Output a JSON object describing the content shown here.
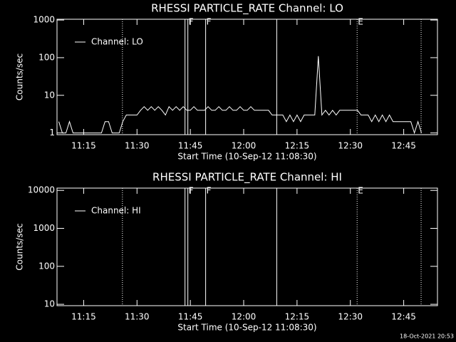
{
  "chart_data": [
    {
      "type": "line",
      "title": "RHESSI  PARTICLE_RATE  Channel: LO",
      "xlabel": "Start Time (10-Sep-12 11:08:30)",
      "ylabel": "Counts/sec",
      "xlim": [
        "11:07:30",
        "12:54:30"
      ],
      "xticks": [
        "11:15",
        "11:30",
        "11:45",
        "12:00",
        "12:15",
        "12:30",
        "12:45"
      ],
      "ylim": [
        0.9,
        1050
      ],
      "yticks": [
        1,
        10,
        100,
        1000
      ],
      "log_y": true,
      "markers": [
        {
          "x": "11:25:54",
          "style": "dotted"
        },
        {
          "x": "11:43:30",
          "style": "solid"
        },
        {
          "x": "11:44:18",
          "style": "solid",
          "label": "F"
        },
        {
          "x": "11:49:18",
          "style": "solid",
          "label": "F"
        },
        {
          "x": "12:09:18",
          "style": "solid"
        },
        {
          "x": "12:31:54",
          "style": "dotted",
          "label": "E"
        },
        {
          "x": "12:49:54",
          "style": "dotted"
        }
      ],
      "series": [
        {
          "name": "Channel: LO",
          "color": "#ffffff",
          "x": [
            "11:08",
            "11:09",
            "11:10",
            "11:11",
            "11:12",
            "11:13",
            "11:14",
            "11:15",
            "11:16",
            "11:17",
            "11:18",
            "11:19",
            "11:20",
            "11:21",
            "11:22",
            "11:23",
            "11:24",
            "11:25",
            "11:26",
            "11:27",
            "11:28",
            "11:29",
            "11:30",
            "11:31",
            "11:32",
            "11:33",
            "11:34",
            "11:35",
            "11:36",
            "11:37",
            "11:38",
            "11:39",
            "11:40",
            "11:41",
            "11:42",
            "11:43",
            "11:44",
            "11:45",
            "11:46",
            "11:47",
            "11:48",
            "11:49",
            "11:50",
            "11:51",
            "11:52",
            "11:53",
            "11:54",
            "11:55",
            "11:56",
            "11:57",
            "11:58",
            "11:59",
            "12:00",
            "12:01",
            "12:02",
            "12:03",
            "12:04",
            "12:05",
            "12:06",
            "12:07",
            "12:08",
            "12:09",
            "12:10",
            "12:11",
            "12:12",
            "12:13",
            "12:14",
            "12:15",
            "12:16",
            "12:17",
            "12:18",
            "12:19",
            "12:20",
            "12:21",
            "12:22",
            "12:23",
            "12:24",
            "12:25",
            "12:26",
            "12:27",
            "12:28",
            "12:29",
            "12:30",
            "12:31",
            "12:32",
            "12:33",
            "12:34",
            "12:35",
            "12:36",
            "12:37",
            "12:38",
            "12:39",
            "12:40",
            "12:41",
            "12:42",
            "12:43",
            "12:44",
            "12:45",
            "12:46",
            "12:47",
            "12:48",
            "12:49",
            "12:50"
          ],
          "values": [
            2,
            1,
            1,
            2,
            1,
            1,
            1,
            1,
            1,
            1,
            1,
            1,
            1,
            2,
            2,
            1,
            1,
            1,
            2,
            3,
            3,
            3,
            3,
            4,
            5,
            4,
            5,
            4,
            5,
            4,
            3,
            5,
            4,
            5,
            4,
            5,
            4,
            4,
            5,
            4,
            4,
            4,
            5,
            4,
            4,
            5,
            4,
            4,
            5,
            4,
            4,
            5,
            4,
            4,
            5,
            4,
            4,
            4,
            4,
            4,
            3,
            3,
            3,
            3,
            2,
            3,
            2,
            3,
            2,
            3,
            3,
            3,
            3,
            110,
            3,
            4,
            3,
            4,
            3,
            4,
            4,
            4,
            4,
            4,
            4,
            3,
            3,
            3,
            2,
            3,
            2,
            3,
            2,
            3,
            2,
            2,
            2,
            2,
            2,
            2,
            1,
            2,
            1
          ]
        }
      ]
    },
    {
      "type": "line",
      "title": "RHESSI  PARTICLE_RATE  Channel: HI",
      "xlabel": "Start Time (10-Sep-12 11:08:30)",
      "ylabel": "Counts/sec",
      "xlim": [
        "11:07:30",
        "12:54:30"
      ],
      "xticks": [
        "11:15",
        "11:30",
        "11:45",
        "12:00",
        "12:15",
        "12:30",
        "12:45"
      ],
      "ylim": [
        9.2,
        11500
      ],
      "yticks": [
        10,
        100,
        1000,
        10000
      ],
      "log_y": true,
      "markers": [
        {
          "x": "11:25:54",
          "style": "dotted"
        },
        {
          "x": "11:43:30",
          "style": "solid"
        },
        {
          "x": "11:44:18",
          "style": "solid",
          "label": "F"
        },
        {
          "x": "11:49:18",
          "style": "solid",
          "label": "F"
        },
        {
          "x": "12:09:18",
          "style": "solid"
        },
        {
          "x": "12:31:54",
          "style": "dotted",
          "label": "E"
        },
        {
          "x": "12:49:54",
          "style": "dotted"
        }
      ],
      "series": [
        {
          "name": "Channel: HI",
          "color": "#ffffff",
          "x": [],
          "values": []
        }
      ]
    }
  ],
  "footer": "18-Oct-2021 20:53"
}
